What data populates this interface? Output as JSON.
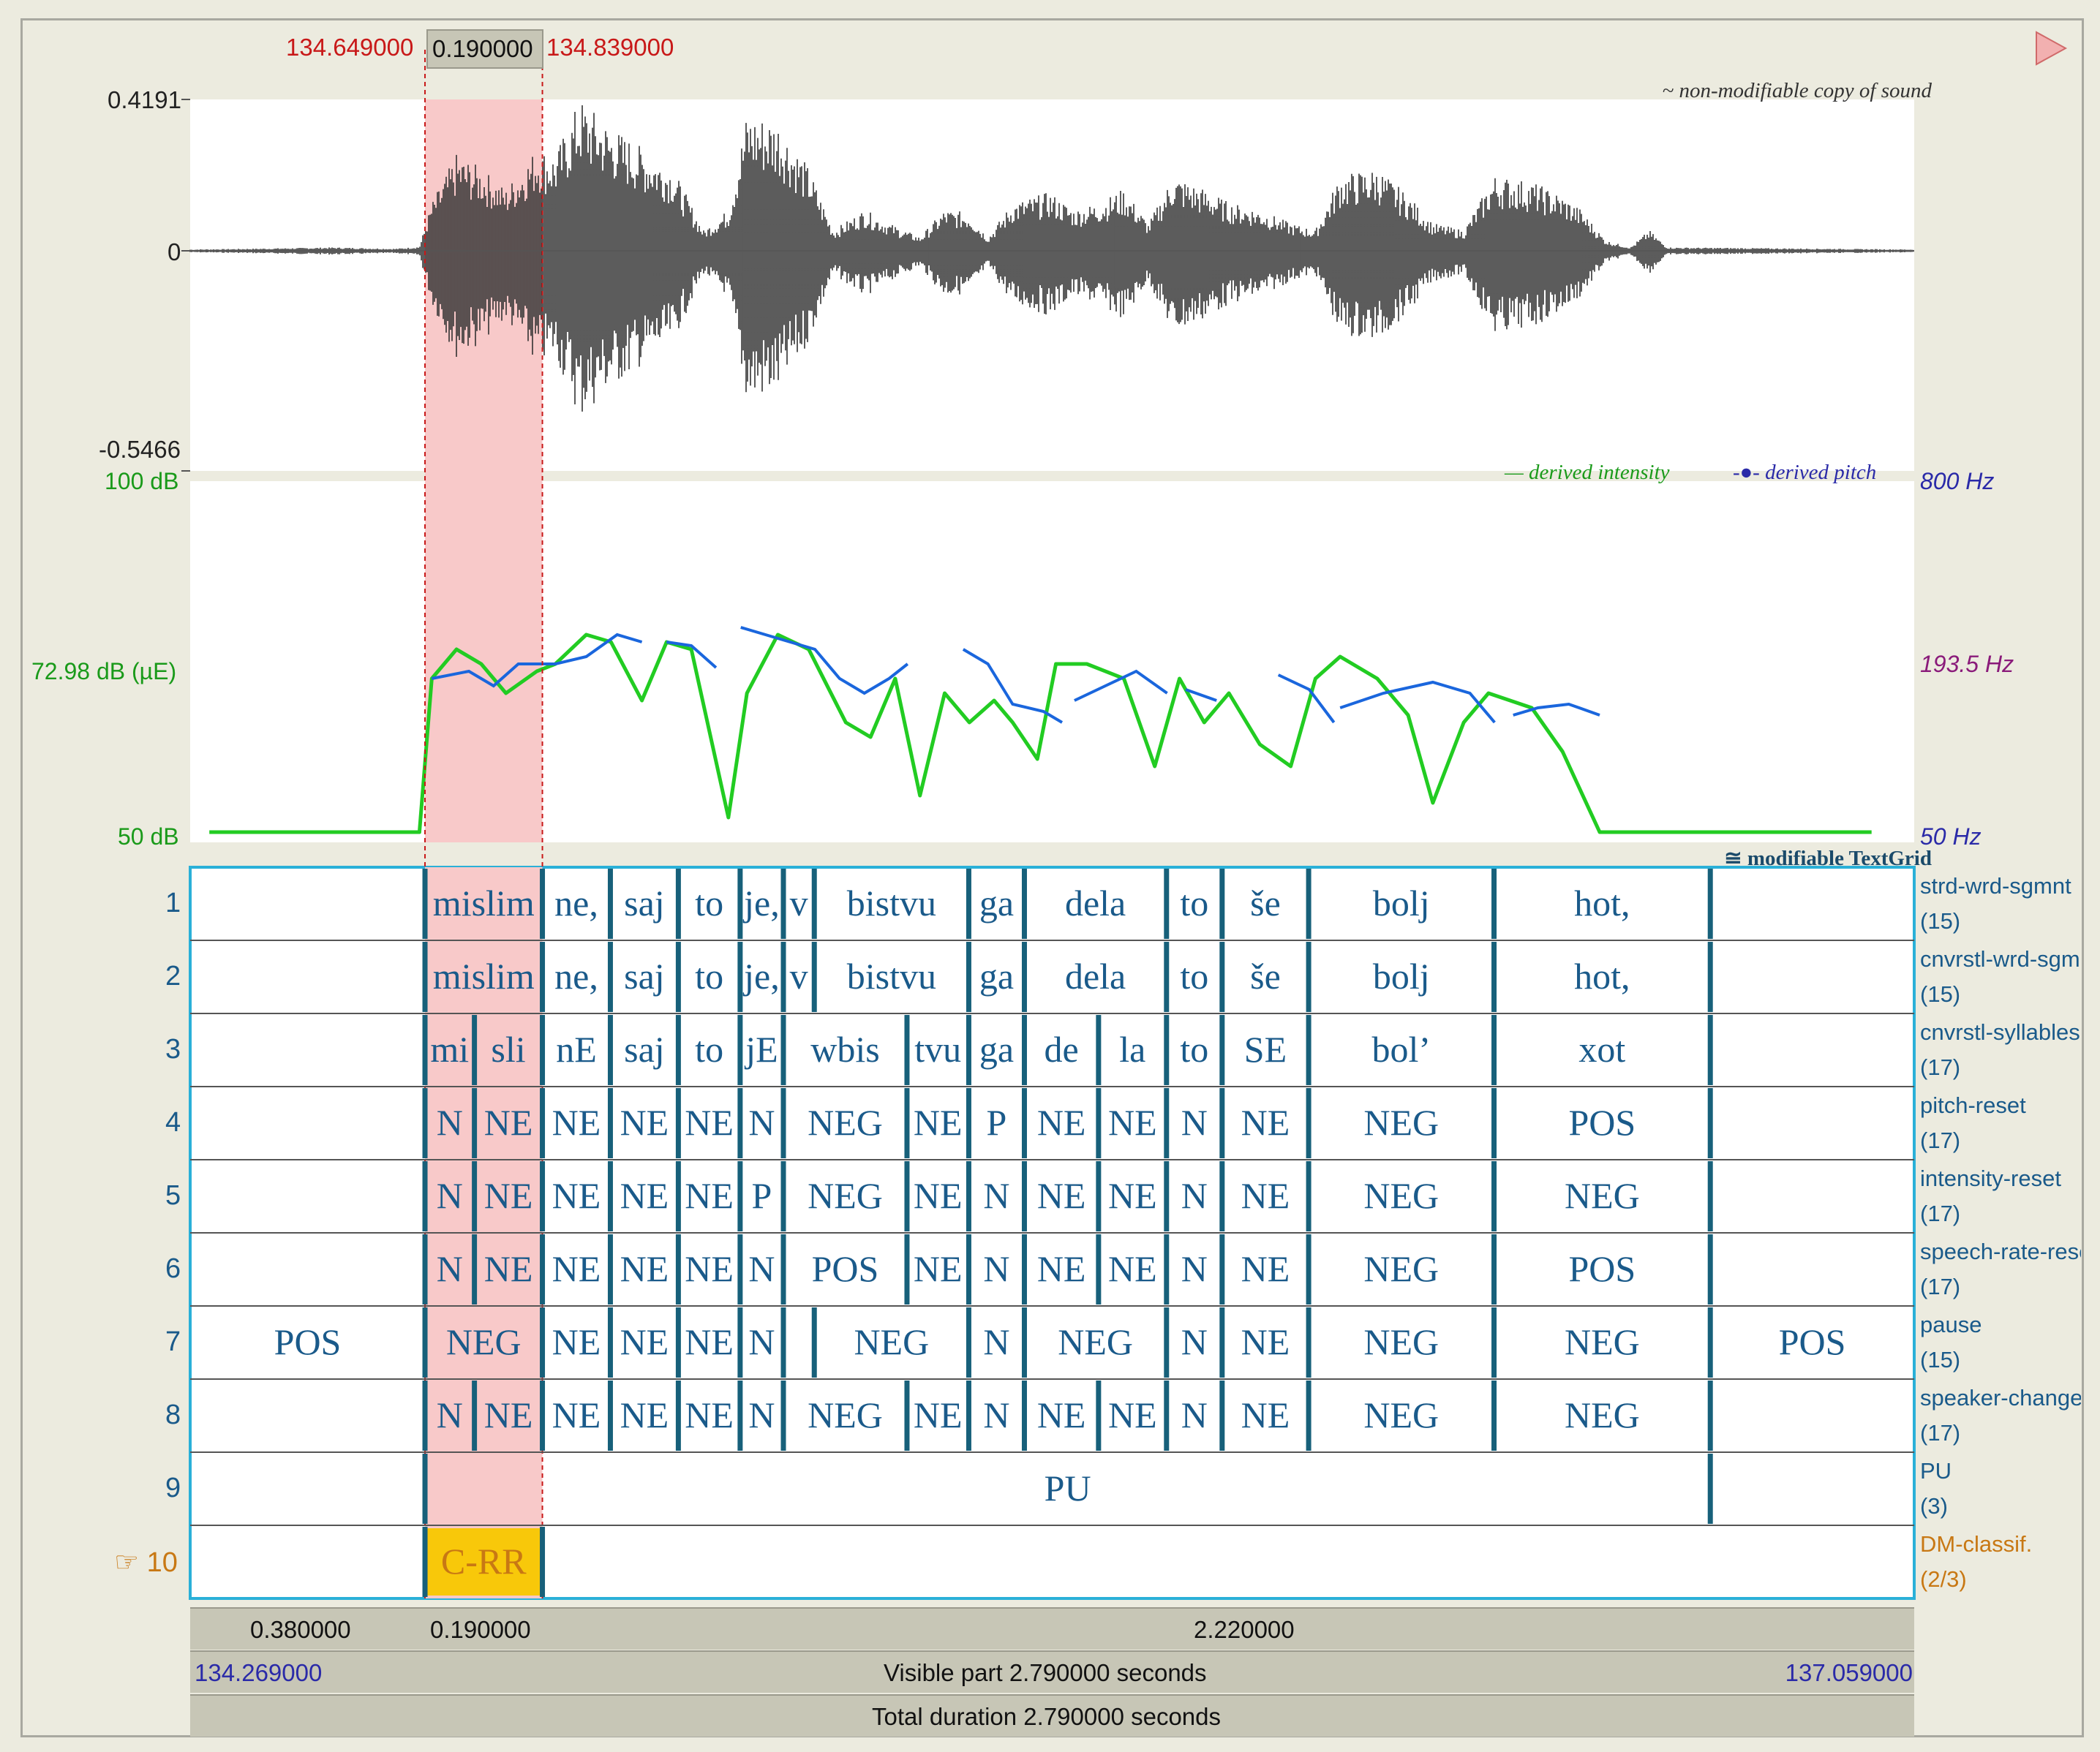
{
  "selection": {
    "start_label": "134.649000",
    "duration_label": "0.190000",
    "end_label": "134.839000"
  },
  "waveform": {
    "max_label": "0.4191",
    "zero_label": "0",
    "min_label": "-0.5466",
    "note": "~ non-modifiable copy of sound"
  },
  "analysis": {
    "intensity_max_label": "100 dB",
    "intensity_mid_label": "72.98 dB (µE)",
    "intensity_min_label": "50 dB",
    "pitch_max_label": "800 Hz",
    "pitch_mid_label": "193.5 Hz",
    "pitch_min_label": "50 Hz",
    "legend_intensity": "— derived intensity",
    "legend_pitch": "-●- derived pitch",
    "intensity_color": "#22cc22",
    "pitch_color": "#1a66dd"
  },
  "textgrid": {
    "note": "≅ modifiable TextGrid",
    "time_start": 134.269,
    "time_end": 137.059,
    "tiers": [
      {
        "num": "1",
        "name": "strd-wrd-sgmnt",
        "count": "(15)",
        "intervals": [
          {
            "t0": 134.269,
            "t1": 134.649,
            "text": ""
          },
          {
            "t0": 134.649,
            "t1": 134.839,
            "text": "mislim"
          },
          {
            "t0": 134.839,
            "t1": 134.949,
            "text": "ne,"
          },
          {
            "t0": 134.949,
            "t1": 135.059,
            "text": "saj"
          },
          {
            "t0": 135.059,
            "t1": 135.159,
            "text": "to"
          },
          {
            "t0": 135.159,
            "t1": 135.229,
            "text": "je,"
          },
          {
            "t0": 135.229,
            "t1": 135.279,
            "text": "v"
          },
          {
            "t0": 135.279,
            "t1": 135.529,
            "text": "bistvu"
          },
          {
            "t0": 135.529,
            "t1": 135.619,
            "text": "ga"
          },
          {
            "t0": 135.619,
            "t1": 135.849,
            "text": "dela"
          },
          {
            "t0": 135.849,
            "t1": 135.939,
            "text": "to"
          },
          {
            "t0": 135.939,
            "t1": 136.079,
            "text": "še"
          },
          {
            "t0": 136.079,
            "t1": 136.379,
            "text": "bolj"
          },
          {
            "t0": 136.379,
            "t1": 136.729,
            "text": "hot,"
          },
          {
            "t0": 136.729,
            "t1": 137.059,
            "text": ""
          }
        ]
      },
      {
        "num": "2",
        "name": "cnvrstl-wrd-sgmnt",
        "count": "(15)",
        "intervals": [
          {
            "t0": 134.269,
            "t1": 134.649,
            "text": ""
          },
          {
            "t0": 134.649,
            "t1": 134.839,
            "text": "mislim"
          },
          {
            "t0": 134.839,
            "t1": 134.949,
            "text": "ne,"
          },
          {
            "t0": 134.949,
            "t1": 135.059,
            "text": "saj"
          },
          {
            "t0": 135.059,
            "t1": 135.159,
            "text": "to"
          },
          {
            "t0": 135.159,
            "t1": 135.229,
            "text": "je,"
          },
          {
            "t0": 135.229,
            "t1": 135.279,
            "text": "v"
          },
          {
            "t0": 135.279,
            "t1": 135.529,
            "text": "bistvu"
          },
          {
            "t0": 135.529,
            "t1": 135.619,
            "text": "ga"
          },
          {
            "t0": 135.619,
            "t1": 135.849,
            "text": "dela"
          },
          {
            "t0": 135.849,
            "t1": 135.939,
            "text": "to"
          },
          {
            "t0": 135.939,
            "t1": 136.079,
            "text": "še"
          },
          {
            "t0": 136.079,
            "t1": 136.379,
            "text": "bolj"
          },
          {
            "t0": 136.379,
            "t1": 136.729,
            "text": "hot,"
          },
          {
            "t0": 136.729,
            "t1": 137.059,
            "text": ""
          }
        ]
      },
      {
        "num": "3",
        "name": "cnvrstl-syllables",
        "count": "(17)",
        "intervals": [
          {
            "t0": 134.269,
            "t1": 134.649,
            "text": ""
          },
          {
            "t0": 134.649,
            "t1": 134.729,
            "text": "mi"
          },
          {
            "t0": 134.729,
            "t1": 134.839,
            "text": "sli"
          },
          {
            "t0": 134.839,
            "t1": 134.949,
            "text": "nE"
          },
          {
            "t0": 134.949,
            "t1": 135.059,
            "text": "saj"
          },
          {
            "t0": 135.059,
            "t1": 135.159,
            "text": "to"
          },
          {
            "t0": 135.159,
            "t1": 135.229,
            "text": "jE"
          },
          {
            "t0": 135.229,
            "t1": 135.429,
            "text": "wbis"
          },
          {
            "t0": 135.429,
            "t1": 135.529,
            "text": "tvu"
          },
          {
            "t0": 135.529,
            "t1": 135.619,
            "text": "ga"
          },
          {
            "t0": 135.619,
            "t1": 135.739,
            "text": "de"
          },
          {
            "t0": 135.739,
            "t1": 135.849,
            "text": "la"
          },
          {
            "t0": 135.849,
            "t1": 135.939,
            "text": "to"
          },
          {
            "t0": 135.939,
            "t1": 136.079,
            "text": "SE"
          },
          {
            "t0": 136.079,
            "t1": 136.379,
            "text": "bol’"
          },
          {
            "t0": 136.379,
            "t1": 136.729,
            "text": "xot"
          },
          {
            "t0": 136.729,
            "t1": 137.059,
            "text": ""
          }
        ]
      },
      {
        "num": "4",
        "name": "pitch-reset",
        "count": "(17)",
        "intervals": [
          {
            "t0": 134.269,
            "t1": 134.649,
            "text": ""
          },
          {
            "t0": 134.649,
            "t1": 134.729,
            "text": "N"
          },
          {
            "t0": 134.729,
            "t1": 134.839,
            "text": "NE"
          },
          {
            "t0": 134.839,
            "t1": 134.949,
            "text": "NE"
          },
          {
            "t0": 134.949,
            "t1": 135.059,
            "text": "NE"
          },
          {
            "t0": 135.059,
            "t1": 135.159,
            "text": "NE"
          },
          {
            "t0": 135.159,
            "t1": 135.229,
            "text": "N"
          },
          {
            "t0": 135.229,
            "t1": 135.429,
            "text": "NEG"
          },
          {
            "t0": 135.429,
            "t1": 135.529,
            "text": "NE"
          },
          {
            "t0": 135.529,
            "t1": 135.619,
            "text": "P"
          },
          {
            "t0": 135.619,
            "t1": 135.739,
            "text": "NE"
          },
          {
            "t0": 135.739,
            "t1": 135.849,
            "text": "NE"
          },
          {
            "t0": 135.849,
            "t1": 135.939,
            "text": "N"
          },
          {
            "t0": 135.939,
            "t1": 136.079,
            "text": "NE"
          },
          {
            "t0": 136.079,
            "t1": 136.379,
            "text": "NEG"
          },
          {
            "t0": 136.379,
            "t1": 136.729,
            "text": "POS"
          },
          {
            "t0": 136.729,
            "t1": 137.059,
            "text": ""
          }
        ]
      },
      {
        "num": "5",
        "name": "intensity-reset",
        "count": "(17)",
        "intervals": [
          {
            "t0": 134.269,
            "t1": 134.649,
            "text": ""
          },
          {
            "t0": 134.649,
            "t1": 134.729,
            "text": "N"
          },
          {
            "t0": 134.729,
            "t1": 134.839,
            "text": "NE"
          },
          {
            "t0": 134.839,
            "t1": 134.949,
            "text": "NE"
          },
          {
            "t0": 134.949,
            "t1": 135.059,
            "text": "NE"
          },
          {
            "t0": 135.059,
            "t1": 135.159,
            "text": "NE"
          },
          {
            "t0": 135.159,
            "t1": 135.229,
            "text": "P"
          },
          {
            "t0": 135.229,
            "t1": 135.429,
            "text": "NEG"
          },
          {
            "t0": 135.429,
            "t1": 135.529,
            "text": "NE"
          },
          {
            "t0": 135.529,
            "t1": 135.619,
            "text": "N"
          },
          {
            "t0": 135.619,
            "t1": 135.739,
            "text": "NE"
          },
          {
            "t0": 135.739,
            "t1": 135.849,
            "text": "NE"
          },
          {
            "t0": 135.849,
            "t1": 135.939,
            "text": "N"
          },
          {
            "t0": 135.939,
            "t1": 136.079,
            "text": "NE"
          },
          {
            "t0": 136.079,
            "t1": 136.379,
            "text": "NEG"
          },
          {
            "t0": 136.379,
            "t1": 136.729,
            "text": "NEG"
          },
          {
            "t0": 136.729,
            "t1": 137.059,
            "text": ""
          }
        ]
      },
      {
        "num": "6",
        "name": "speech-rate-reset",
        "count": "(17)",
        "intervals": [
          {
            "t0": 134.269,
            "t1": 134.649,
            "text": ""
          },
          {
            "t0": 134.649,
            "t1": 134.729,
            "text": "N"
          },
          {
            "t0": 134.729,
            "t1": 134.839,
            "text": "NE"
          },
          {
            "t0": 134.839,
            "t1": 134.949,
            "text": "NE"
          },
          {
            "t0": 134.949,
            "t1": 135.059,
            "text": "NE"
          },
          {
            "t0": 135.059,
            "t1": 135.159,
            "text": "NE"
          },
          {
            "t0": 135.159,
            "t1": 135.229,
            "text": "N"
          },
          {
            "t0": 135.229,
            "t1": 135.429,
            "text": "POS"
          },
          {
            "t0": 135.429,
            "t1": 135.529,
            "text": "NE"
          },
          {
            "t0": 135.529,
            "t1": 135.619,
            "text": "N"
          },
          {
            "t0": 135.619,
            "t1": 135.739,
            "text": "NE"
          },
          {
            "t0": 135.739,
            "t1": 135.849,
            "text": "NE"
          },
          {
            "t0": 135.849,
            "t1": 135.939,
            "text": "N"
          },
          {
            "t0": 135.939,
            "t1": 136.079,
            "text": "NE"
          },
          {
            "t0": 136.079,
            "t1": 136.379,
            "text": "NEG"
          },
          {
            "t0": 136.379,
            "t1": 136.729,
            "text": "POS"
          },
          {
            "t0": 136.729,
            "t1": 137.059,
            "text": ""
          }
        ]
      },
      {
        "num": "7",
        "name": "pause",
        "count": "(15)",
        "intervals": [
          {
            "t0": 134.269,
            "t1": 134.649,
            "text": "POS"
          },
          {
            "t0": 134.649,
            "t1": 134.839,
            "text": "NEG"
          },
          {
            "t0": 134.839,
            "t1": 134.949,
            "text": "NE"
          },
          {
            "t0": 134.949,
            "t1": 135.059,
            "text": "NE"
          },
          {
            "t0": 135.059,
            "t1": 135.159,
            "text": "NE"
          },
          {
            "t0": 135.159,
            "t1": 135.229,
            "text": "N"
          },
          {
            "t0": 135.229,
            "t1": 135.279,
            "text": ""
          },
          {
            "t0": 135.279,
            "t1": 135.529,
            "text": "NEG"
          },
          {
            "t0": 135.529,
            "t1": 135.619,
            "text": "N"
          },
          {
            "t0": 135.619,
            "t1": 135.849,
            "text": "NEG"
          },
          {
            "t0": 135.849,
            "t1": 135.939,
            "text": "N"
          },
          {
            "t0": 135.939,
            "t1": 136.079,
            "text": "NE"
          },
          {
            "t0": 136.079,
            "t1": 136.379,
            "text": "NEG"
          },
          {
            "t0": 136.379,
            "t1": 136.729,
            "text": "NEG"
          },
          {
            "t0": 136.729,
            "t1": 137.059,
            "text": "POS"
          }
        ]
      },
      {
        "num": "8",
        "name": "speaker-change",
        "count": "(17)",
        "intervals": [
          {
            "t0": 134.269,
            "t1": 134.649,
            "text": ""
          },
          {
            "t0": 134.649,
            "t1": 134.729,
            "text": "N"
          },
          {
            "t0": 134.729,
            "t1": 134.839,
            "text": "NE"
          },
          {
            "t0": 134.839,
            "t1": 134.949,
            "text": "NE"
          },
          {
            "t0": 134.949,
            "t1": 135.059,
            "text": "NE"
          },
          {
            "t0": 135.059,
            "t1": 135.159,
            "text": "NE"
          },
          {
            "t0": 135.159,
            "t1": 135.229,
            "text": "N"
          },
          {
            "t0": 135.229,
            "t1": 135.429,
            "text": "NEG"
          },
          {
            "t0": 135.429,
            "t1": 135.529,
            "text": "NE"
          },
          {
            "t0": 135.529,
            "t1": 135.619,
            "text": "N"
          },
          {
            "t0": 135.619,
            "t1": 135.739,
            "text": "NE"
          },
          {
            "t0": 135.739,
            "t1": 135.849,
            "text": "NE"
          },
          {
            "t0": 135.849,
            "t1": 135.939,
            "text": "N"
          },
          {
            "t0": 135.939,
            "t1": 136.079,
            "text": "NE"
          },
          {
            "t0": 136.079,
            "t1": 136.379,
            "text": "NEG"
          },
          {
            "t0": 136.379,
            "t1": 136.729,
            "text": "NEG"
          },
          {
            "t0": 136.729,
            "t1": 137.059,
            "text": ""
          }
        ]
      },
      {
        "num": "9",
        "name": "PU",
        "count": "(3)",
        "intervals": [
          {
            "t0": 134.269,
            "t1": 134.649,
            "text": ""
          },
          {
            "t0": 134.649,
            "t1": 136.729,
            "text": "PU"
          },
          {
            "t0": 136.729,
            "t1": 137.059,
            "text": ""
          }
        ]
      },
      {
        "num": "10",
        "name": "DM-classif.",
        "count": "(2/3)",
        "active": true,
        "pointer": "☞",
        "intervals": [
          {
            "t0": 134.269,
            "t1": 134.649,
            "text": ""
          },
          {
            "t0": 134.649,
            "t1": 134.839,
            "text": "C-RR",
            "highlight": true
          },
          {
            "t0": 134.839,
            "t1": 137.059,
            "text": ""
          }
        ]
      }
    ]
  },
  "bottom_bar": {
    "left_duration": "0.380000",
    "sel_duration": "0.190000",
    "right_duration": "2.220000",
    "visible_start": "134.269000",
    "visible_label": "Visible part 2.790000 seconds",
    "visible_end": "137.059000",
    "total_label": "Total duration 2.790000 seconds"
  }
}
